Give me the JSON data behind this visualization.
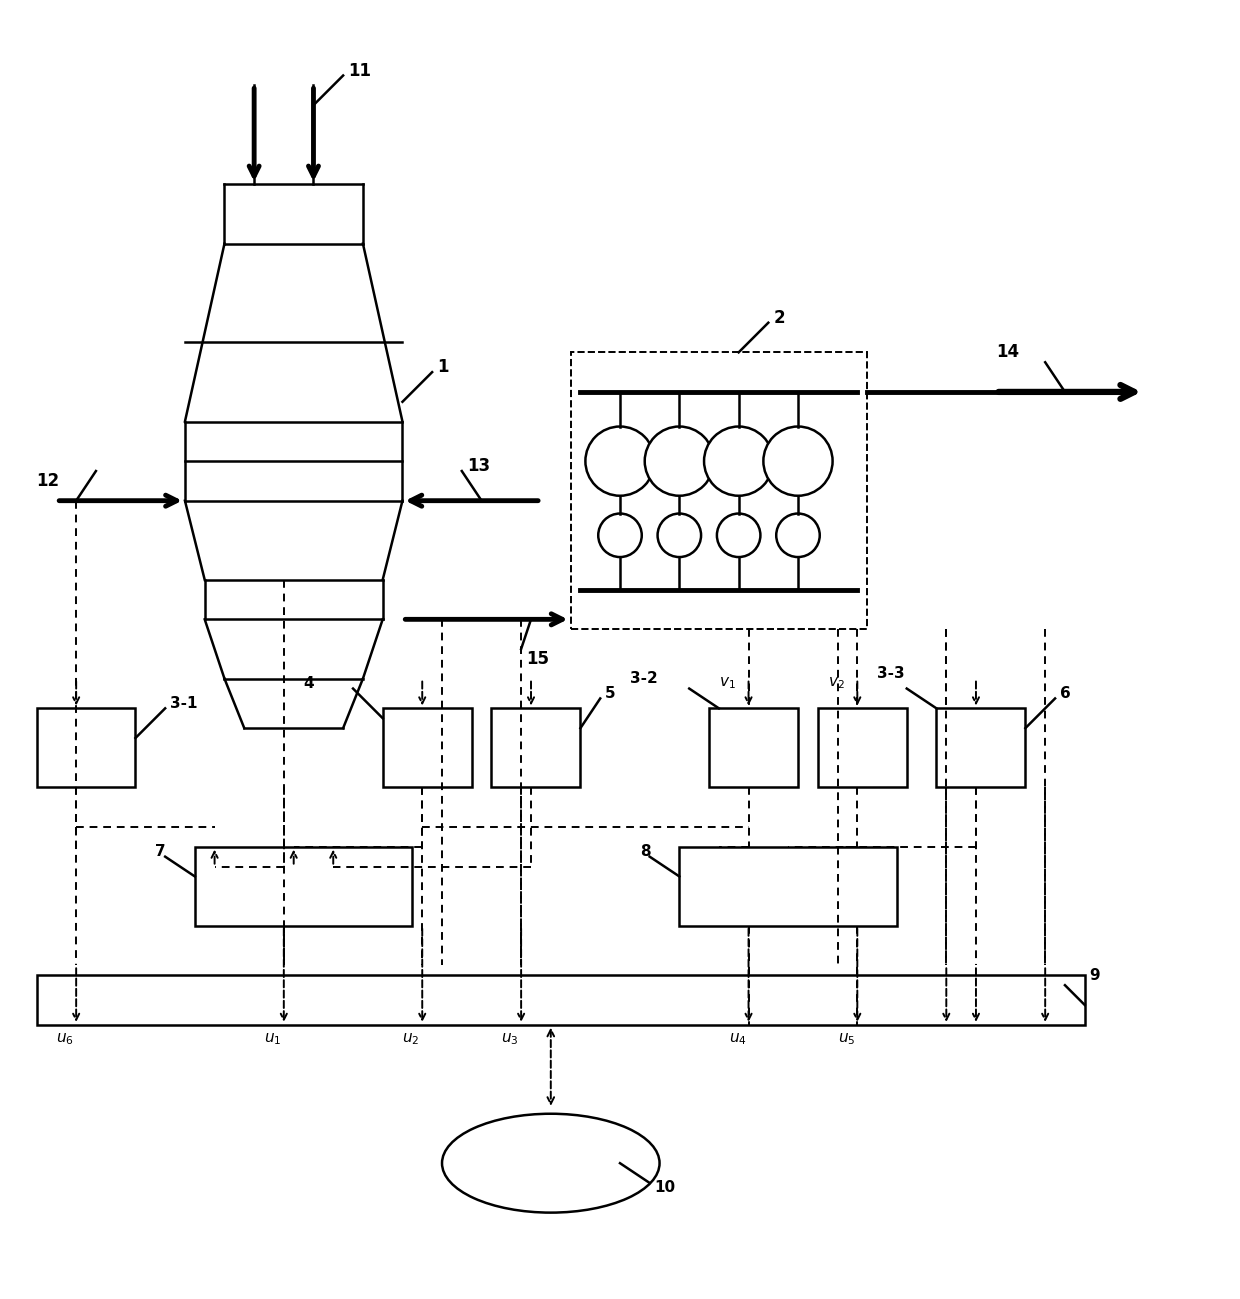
{
  "bg_color": "#ffffff",
  "line_color": "#000000",
  "fig_width": 12.4,
  "fig_height": 12.99,
  "dpi": 100
}
